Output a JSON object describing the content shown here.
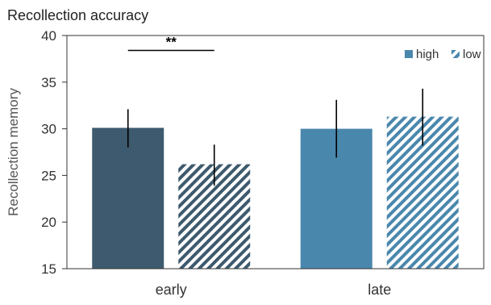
{
  "chart_data": {
    "type": "bar",
    "title": "Recollection accuracy",
    "xlabel": "",
    "ylabel": "Recollection memory",
    "ylim": [
      15,
      40
    ],
    "yticks": [
      15,
      20,
      25,
      30,
      35,
      40
    ],
    "categories": [
      "early",
      "late"
    ],
    "grid": false,
    "legend_position": "top-right",
    "series": [
      {
        "name": "high",
        "values": [
          30.1,
          30.0
        ],
        "error_low": [
          28.0,
          26.9
        ],
        "error_high": [
          32.1,
          33.1
        ],
        "fill": "solid",
        "colors": [
          "#3d5a6e",
          "#4a87ad"
        ]
      },
      {
        "name": "low",
        "values": [
          26.2,
          31.3
        ],
        "error_low": [
          23.9,
          28.2
        ],
        "error_high": [
          28.3,
          34.3
        ],
        "fill": "hatched",
        "colors": [
          "#3d5a6e",
          "#4a87ad"
        ]
      }
    ],
    "annotations": [
      {
        "text": "**",
        "category": "early",
        "between": [
          "high",
          "low"
        ],
        "y": 38.4
      }
    ],
    "legend_color": "#4a87ad",
    "axis_color": "#333333",
    "errorbar_color": "#000000"
  }
}
